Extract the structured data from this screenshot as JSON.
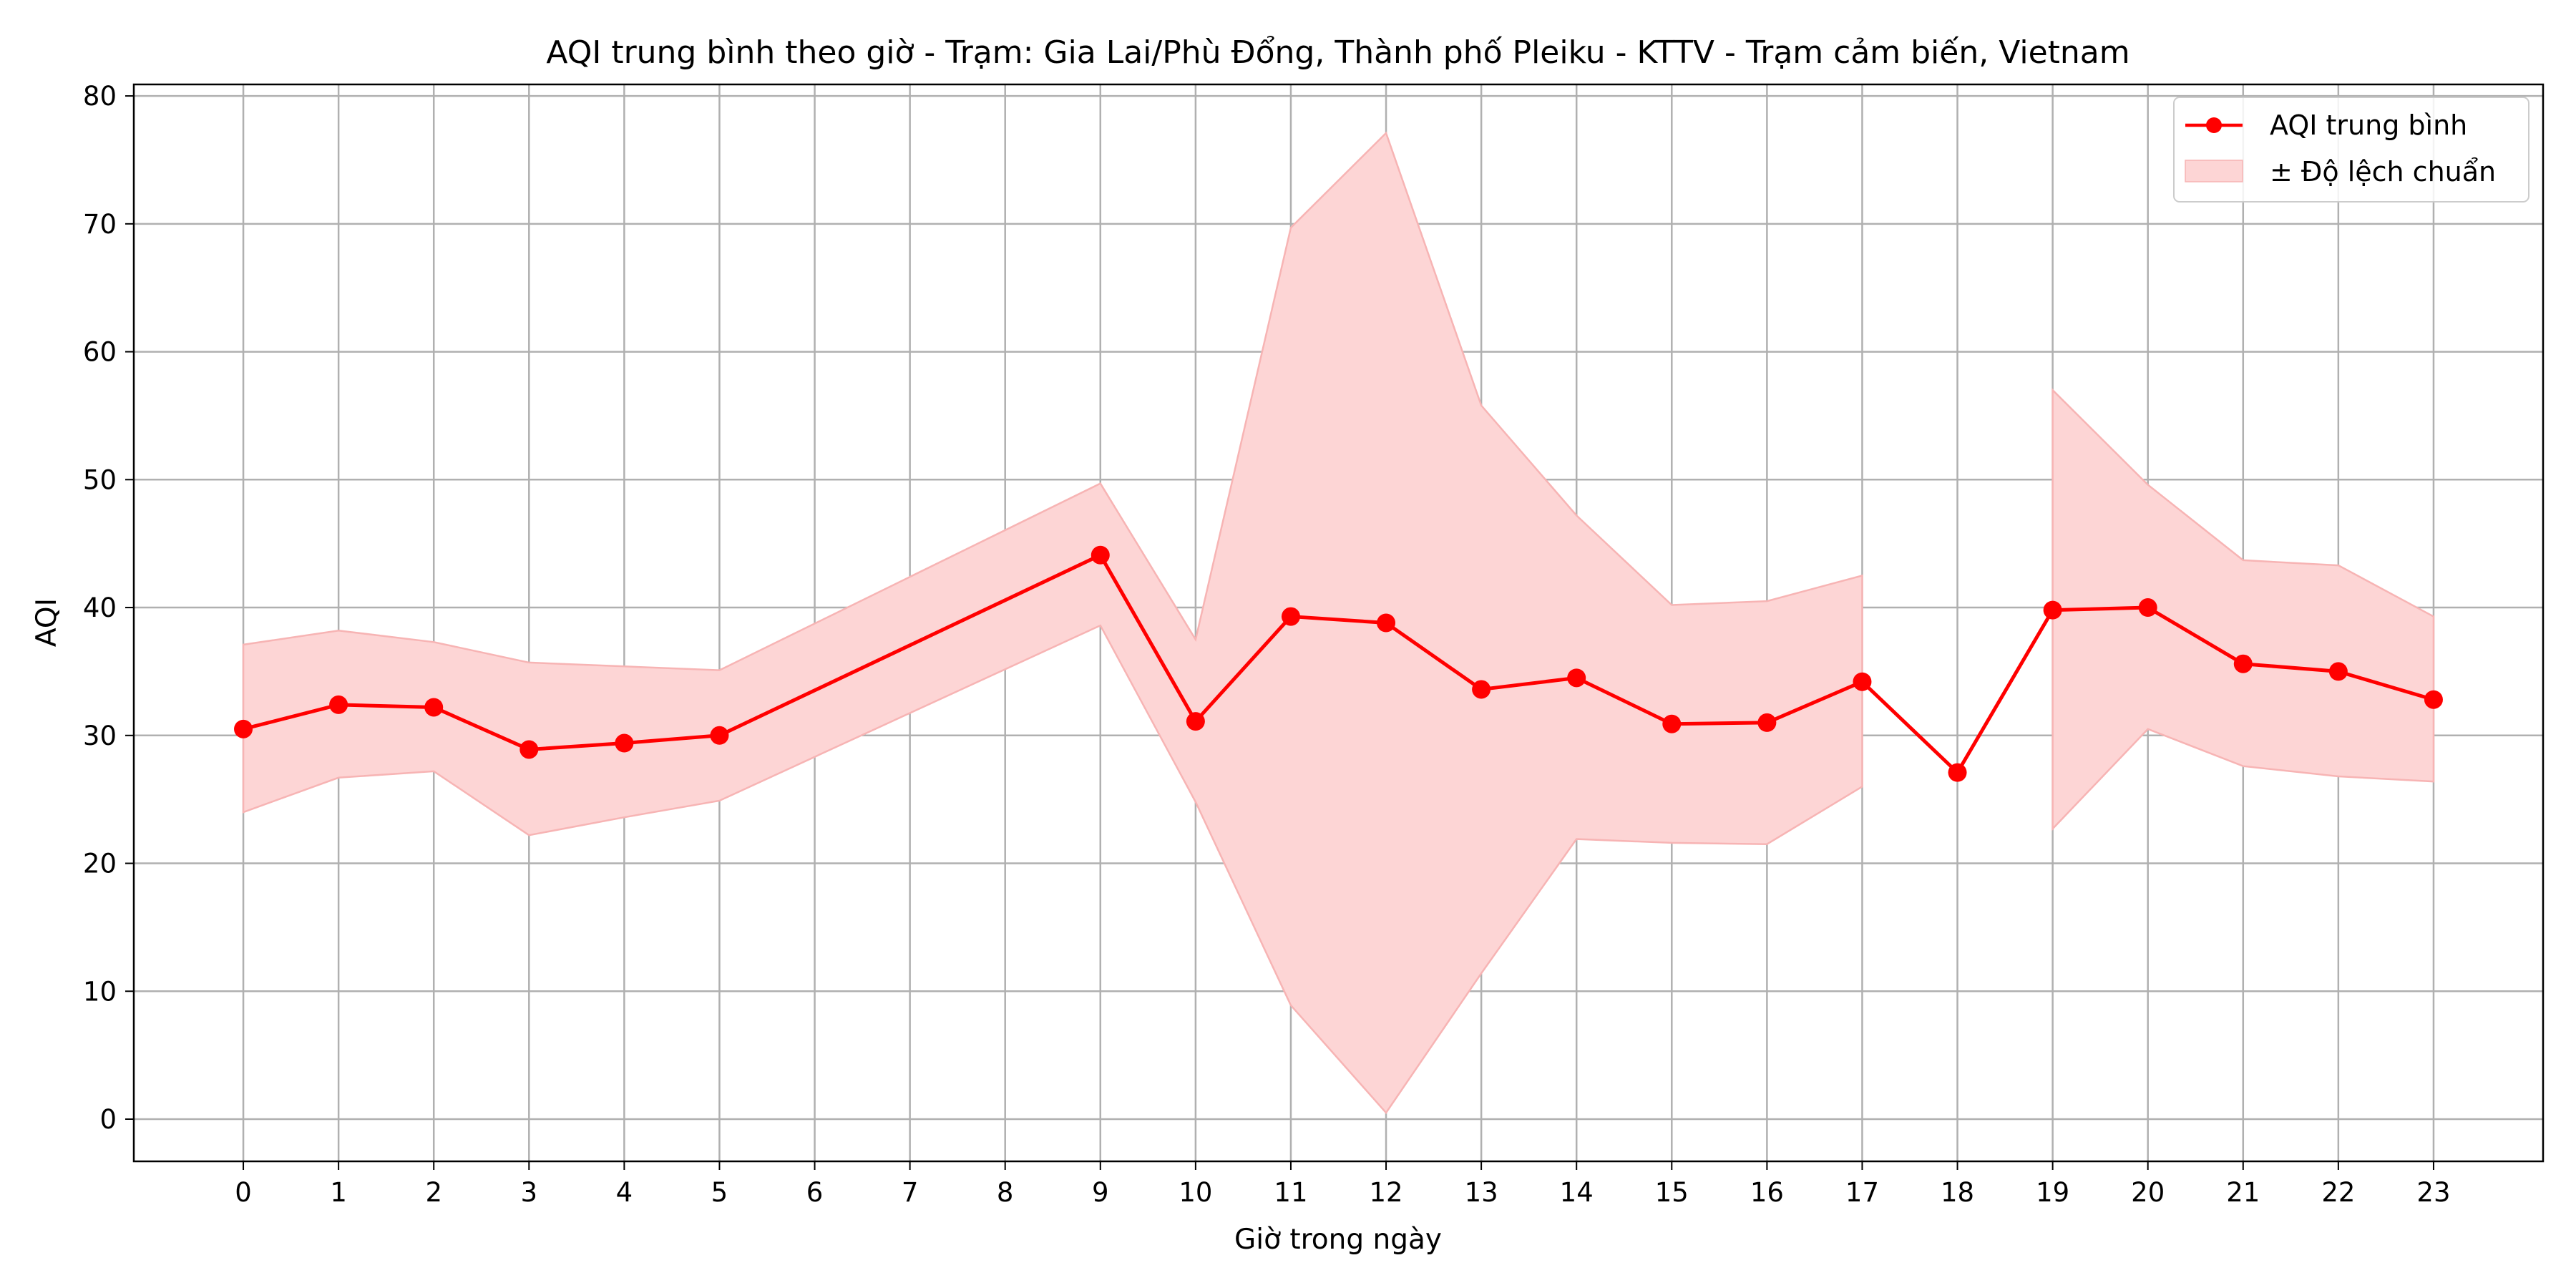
{
  "chart_data": {
    "type": "line",
    "title": "AQI trung bình theo giờ - Trạm: Gia Lai/Phù Đổng, Thành phố Pleiku - KTTV - Trạm cảm biến, Vietnam",
    "xlabel": "Giờ trong ngày",
    "ylabel": "AQI",
    "xlim": [
      -1.15,
      24.15
    ],
    "ylim": [
      -3.3,
      80.9
    ],
    "x_ticks": [
      0,
      1,
      2,
      3,
      4,
      5,
      6,
      7,
      8,
      9,
      10,
      11,
      12,
      13,
      14,
      15,
      16,
      17,
      18,
      19,
      20,
      21,
      22,
      23
    ],
    "y_ticks": [
      0,
      10,
      20,
      30,
      40,
      50,
      60,
      70,
      80
    ],
    "grid": true,
    "legend_position": "top-right",
    "colors": {
      "line": "#ff0000",
      "band_fill": "#fdd5d5",
      "band_edge": "#f7b4b4",
      "grid": "#b0b0b0",
      "legend_border": "#cccccc"
    },
    "series": [
      {
        "name": "AQI trung bình",
        "style": "line-with-markers",
        "segments": [
          [
            [
              0,
              30.5
            ],
            [
              1,
              32.4
            ],
            [
              2,
              32.2
            ],
            [
              3,
              28.9
            ],
            [
              4,
              29.4
            ],
            [
              5,
              30.0
            ],
            [
              9,
              44.1
            ],
            [
              10,
              31.1
            ],
            [
              11,
              39.3
            ],
            [
              12,
              38.8
            ],
            [
              13,
              33.6
            ],
            [
              14,
              34.5
            ],
            [
              15,
              30.9
            ],
            [
              16,
              31.0
            ],
            [
              17,
              34.2
            ],
            [
              18,
              27.1
            ],
            [
              19,
              39.8
            ],
            [
              20,
              40.0
            ],
            [
              21,
              35.6
            ],
            [
              22,
              35.0
            ],
            [
              23,
              32.8
            ]
          ]
        ]
      },
      {
        "name": "± Độ lệch chuẩn",
        "style": "band",
        "segments": [
          [
            [
              0,
              24.0,
              37.1
            ],
            [
              1,
              26.7,
              38.2
            ],
            [
              2,
              27.2,
              37.3
            ],
            [
              3,
              22.2,
              35.7
            ],
            [
              4,
              23.6,
              35.4
            ],
            [
              5,
              24.9,
              35.1
            ],
            [
              9,
              38.6,
              49.7
            ],
            [
              10,
              24.8,
              37.5
            ],
            [
              11,
              8.9,
              69.7
            ],
            [
              12,
              0.5,
              77.1
            ],
            [
              13,
              11.4,
              55.8
            ],
            [
              14,
              21.9,
              47.2
            ],
            [
              15,
              21.6,
              40.2
            ],
            [
              16,
              21.5,
              40.5
            ],
            [
              17,
              26.0,
              42.5
            ]
          ],
          [
            [
              19,
              22.7,
              57.0
            ],
            [
              20,
              30.5,
              49.6
            ],
            [
              21,
              27.6,
              43.7
            ],
            [
              22,
              26.8,
              43.3
            ],
            [
              23,
              26.4,
              39.3
            ]
          ]
        ]
      }
    ]
  }
}
